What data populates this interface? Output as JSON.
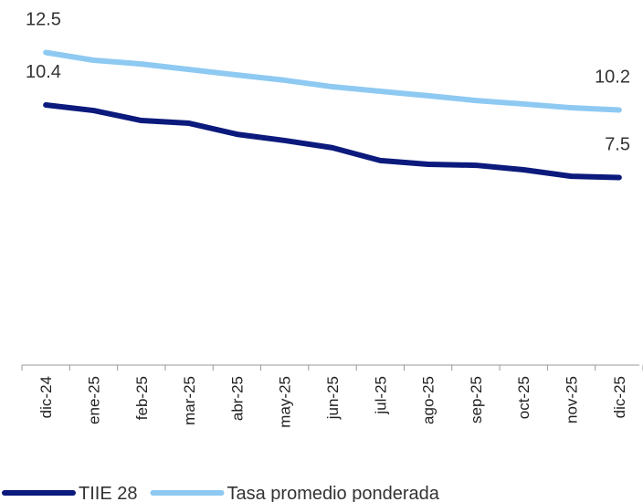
{
  "chart_data": {
    "type": "line",
    "categories": [
      "dic-24",
      "ene-25",
      "feb-25",
      "mar-25",
      "abr-25",
      "may-25",
      "jun-25",
      "jul-25",
      "ago-25",
      "sep-25",
      "oct-25",
      "nov-25",
      "dic-25"
    ],
    "series": [
      {
        "name": "TIIE 28",
        "color": "#0b1a7c",
        "values": [
          10.4,
          10.18,
          9.78,
          9.67,
          9.23,
          8.98,
          8.69,
          8.18,
          8.03,
          7.99,
          7.81,
          7.55,
          7.5
        ]
      },
      {
        "name": "Tasa promedio ponderada",
        "color": "#8ec9f2",
        "values": [
          12.5,
          12.19,
          12.04,
          11.82,
          11.6,
          11.39,
          11.13,
          10.95,
          10.77,
          10.58,
          10.44,
          10.29,
          10.2
        ]
      }
    ],
    "ylim": [
      0,
      14
    ]
  }
}
